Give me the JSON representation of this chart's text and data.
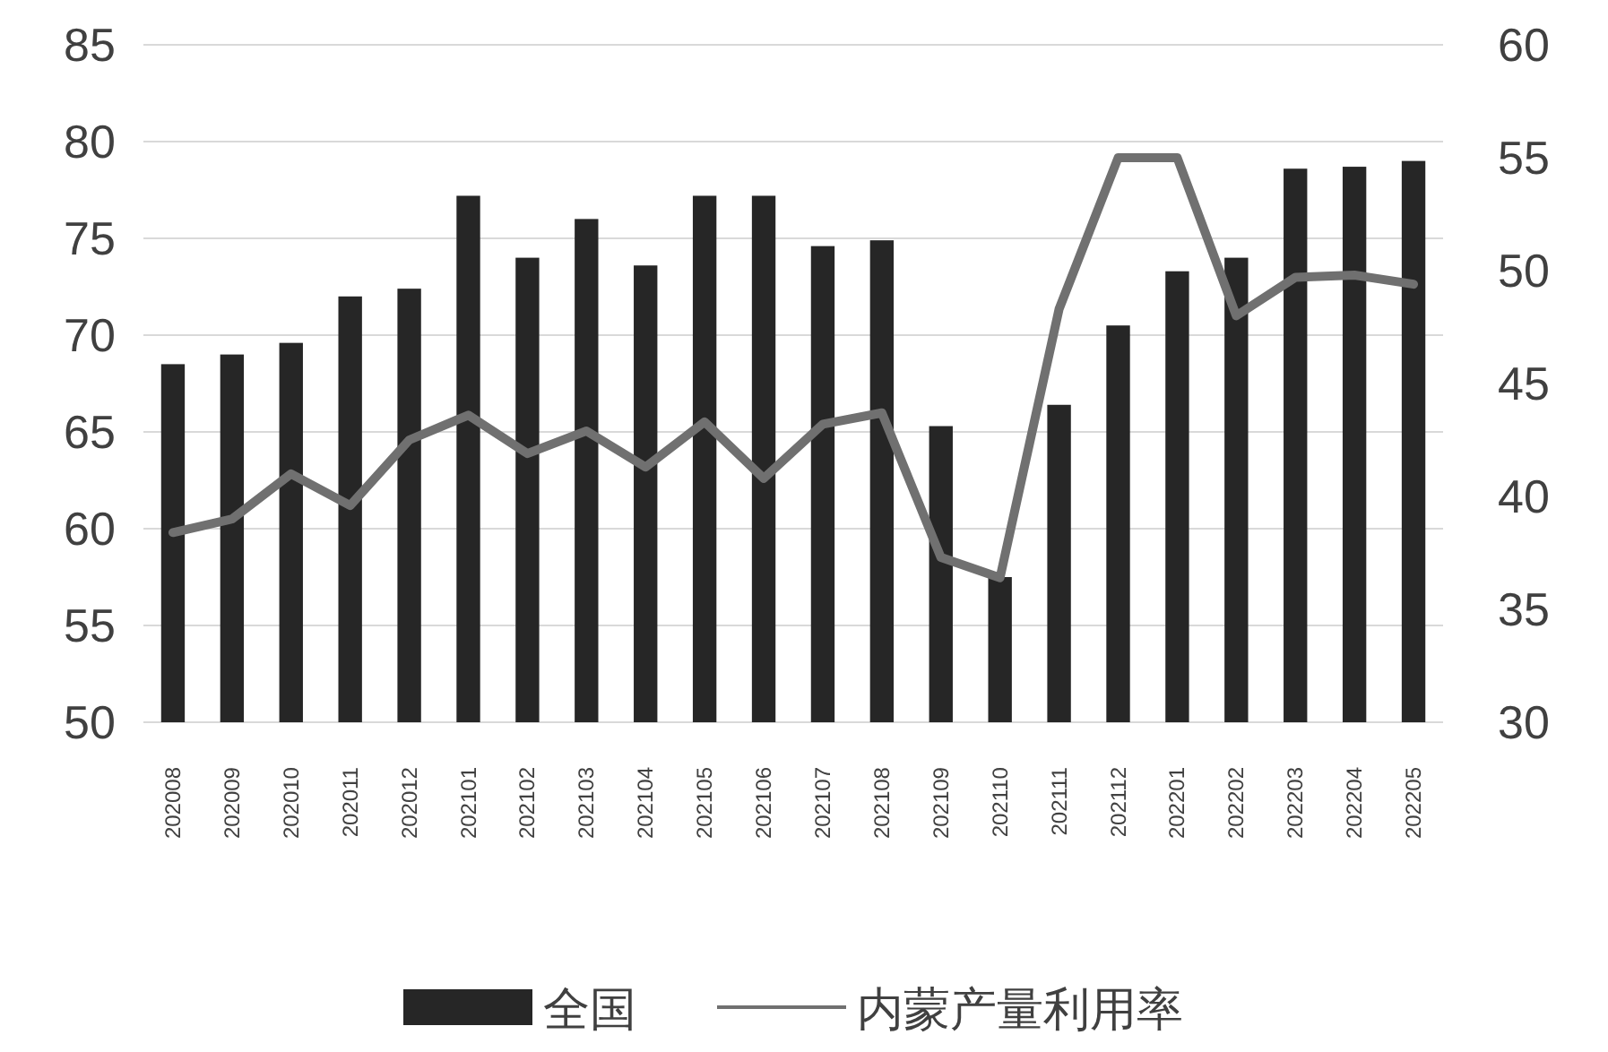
{
  "chart_data": {
    "type": "bar",
    "categories": [
      "202008",
      "202009",
      "202010",
      "202011",
      "202012",
      "202101",
      "202102",
      "202103",
      "202104",
      "202105",
      "202106",
      "202107",
      "202108",
      "202109",
      "202110",
      "202111",
      "202112",
      "202201",
      "202202",
      "202203",
      "202204",
      "202205"
    ],
    "series": [
      {
        "name": "全国",
        "color": "#262626",
        "values": [
          68.5,
          69.0,
          69.6,
          72.0,
          72.4,
          77.2,
          74.0,
          76.0,
          73.6,
          77.2,
          77.2,
          74.6,
          74.9,
          65.3,
          57.5,
          66.4,
          70.5,
          73.3,
          74.0,
          78.6,
          78.7,
          79.0
        ]
      },
      {
        "name": "内蒙产量利用率",
        "type": "line",
        "axis": "y2",
        "color": "#707070",
        "values": [
          38.4,
          39.0,
          41.0,
          39.6,
          42.5,
          43.6,
          41.9,
          42.9,
          41.3,
          43.3,
          40.8,
          43.2,
          43.7,
          37.3,
          36.4,
          48.3,
          55.0,
          55.0,
          48.0,
          49.7,
          49.8,
          49.4
        ]
      }
    ],
    "ylim": [
      50,
      85
    ],
    "yticks": [
      50,
      55,
      60,
      65,
      70,
      75,
      80,
      85
    ],
    "y2lim": [
      30,
      60
    ],
    "y2ticks": [
      30,
      35,
      40,
      45,
      50,
      55,
      60
    ],
    "grid": "y",
    "legend": "bottom",
    "marker": "none",
    "line_style": "solid"
  }
}
